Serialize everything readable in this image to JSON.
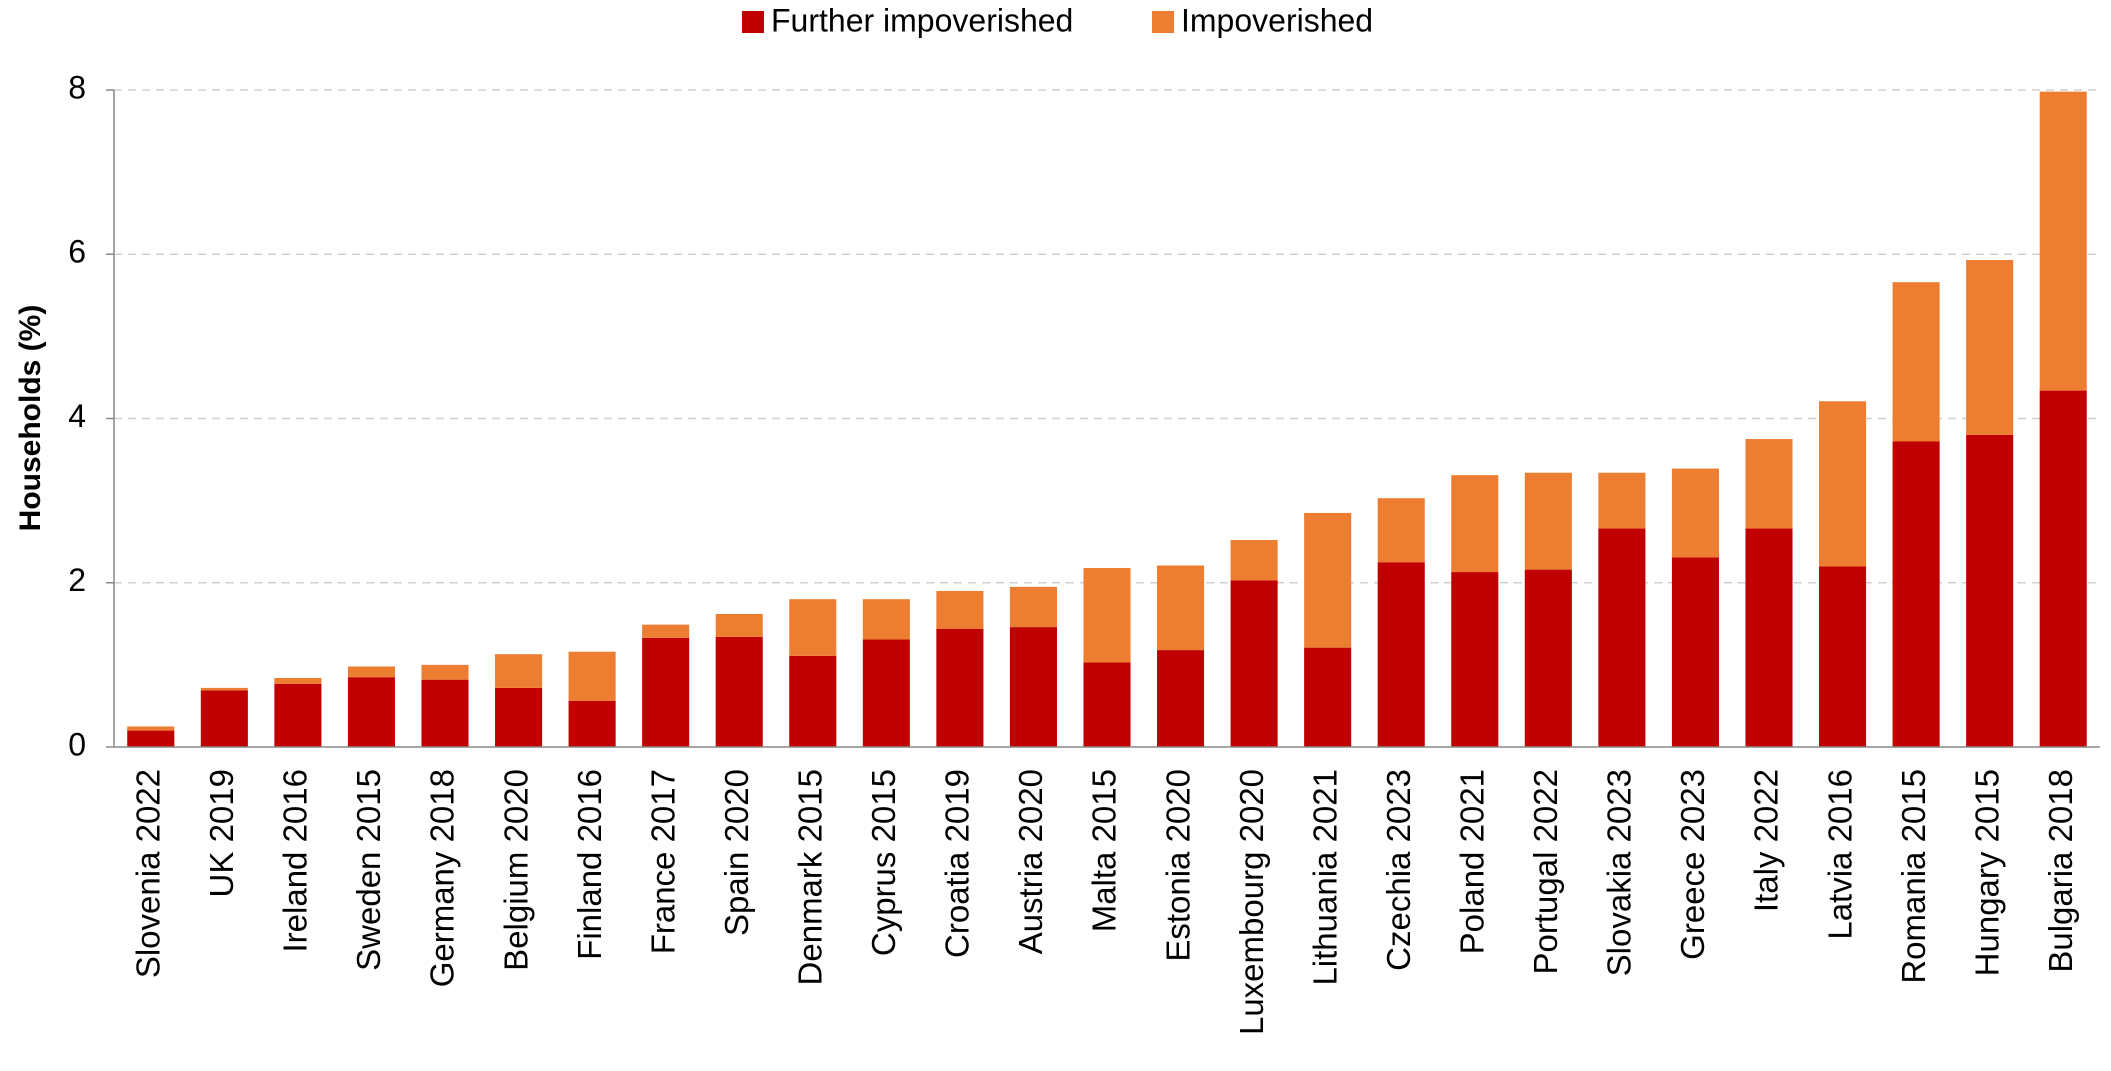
{
  "chart_data": {
    "type": "stacked_bar",
    "y_label": "Households (%)",
    "categories": [
      "Slovenia 2022",
      "UK 2019",
      "Ireland 2016",
      "Sweden 2015",
      "Germany 2018",
      "Belgium 2020",
      "Finland 2016",
      "France 2017",
      "Spain 2020",
      "Denmark 2015",
      "Cyprus 2015",
      "Croatia 2019",
      "Austria 2020",
      "Malta 2015",
      "Estonia 2020",
      "Luxembourg 2020",
      "Lithuania 2021",
      "Czechia 2023",
      "Poland 2021",
      "Portugal 2022",
      "Slovakia 2023",
      "Greece 2023",
      "Italy 2022",
      "Latvia 2016",
      "Romania 2015",
      "Hungary 2015",
      "Bulgaria 2018"
    ],
    "series": [
      {
        "name": "Further impoverished",
        "color": "#c00000",
        "values": [
          0.2,
          0.69,
          0.77,
          0.85,
          0.82,
          0.72,
          0.56,
          1.33,
          1.34,
          1.11,
          1.31,
          1.44,
          1.46,
          1.03,
          1.18,
          2.03,
          1.21,
          2.25,
          2.13,
          2.16,
          2.66,
          2.31,
          2.66,
          2.2,
          3.72,
          3.8,
          4.34
        ]
      },
      {
        "name": "Impoverished",
        "color": "#ed7d31",
        "values": [
          0.05,
          0.03,
          0.07,
          0.13,
          0.18,
          0.41,
          0.6,
          0.16,
          0.28,
          0.69,
          0.49,
          0.46,
          0.49,
          1.15,
          1.03,
          0.49,
          1.64,
          0.78,
          1.18,
          1.18,
          0.68,
          1.08,
          1.09,
          2.01,
          1.94,
          2.13,
          3.64
        ]
      }
    ],
    "ylim": [
      0,
      8
    ],
    "yticks": [
      0,
      2,
      4,
      6,
      8
    ],
    "grid": true,
    "legend": "top"
  }
}
